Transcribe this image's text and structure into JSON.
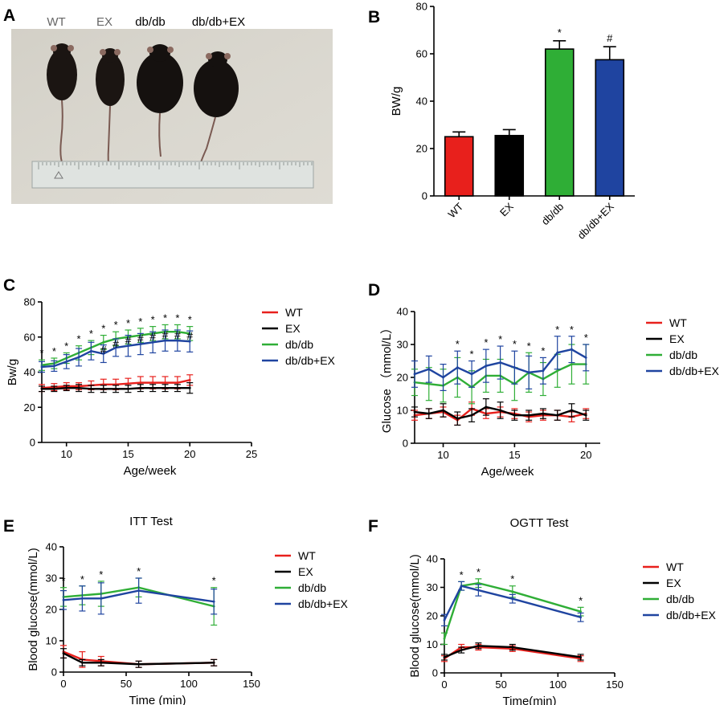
{
  "photo": {
    "panel": "A",
    "labels": [
      "WT",
      "EX",
      "db/db",
      "db/db+EX"
    ],
    "label_colors": [
      "#666666",
      "#666666",
      "#000000",
      "#000000"
    ]
  },
  "colors": {
    "WT": "#e8201c",
    "EX": "#000000",
    "dbdb": "#2fae36",
    "dbdbEX": "#1f44a0"
  },
  "chart_data": [
    {
      "panel": "B",
      "type": "bar",
      "categories": [
        "WT",
        "EX",
        "db/db",
        "db/db+EX"
      ],
      "values": [
        25,
        25.5,
        62,
        57.5
      ],
      "errors": [
        2,
        2.5,
        3.5,
        5.5
      ],
      "colors": [
        "#e8201c",
        "#000000",
        "#2fae36",
        "#1f44a0"
      ],
      "annotations": [
        "",
        "",
        "*",
        "#"
      ],
      "ylabel": "BW/g",
      "ylim": [
        0,
        80
      ],
      "yticks": [
        0,
        20,
        40,
        60,
        80
      ]
    },
    {
      "panel": "C",
      "type": "line",
      "xlabel": "Age/week",
      "ylabel": "Bw/g",
      "xlim": [
        8,
        25
      ],
      "ylim": [
        0,
        80
      ],
      "xticks": [
        10,
        15,
        20,
        25
      ],
      "yticks": [
        0,
        20,
        40,
        60,
        80
      ],
      "x": [
        8,
        9,
        10,
        11,
        12,
        13,
        14,
        15,
        16,
        17,
        18,
        19,
        20
      ],
      "series": [
        {
          "name": "WT",
          "color": "#e8201c",
          "values": [
            31,
            31.5,
            32,
            32,
            32.5,
            33,
            33,
            33.5,
            34,
            34,
            34,
            34,
            35.5
          ],
          "errors": [
            2,
            2,
            2,
            2,
            2.5,
            3,
            3,
            3,
            3.5,
            3.5,
            3.5,
            3.5,
            3
          ]
        },
        {
          "name": "EX",
          "color": "#000000",
          "values": [
            30.5,
            30.5,
            31,
            31,
            30.5,
            30.5,
            30.5,
            30.5,
            31,
            31,
            31,
            31,
            31
          ],
          "errors": [
            1.5,
            1.5,
            1.5,
            2,
            2,
            2,
            2,
            2,
            2,
            2,
            2,
            2,
            3
          ]
        },
        {
          "name": "db/db",
          "color": "#2fae36",
          "values": [
            44,
            45,
            48,
            51,
            54,
            57,
            59,
            60,
            61,
            62,
            63,
            63,
            62
          ],
          "errors": [
            3,
            3,
            3,
            4,
            4,
            4,
            4,
            4,
            4,
            4,
            4,
            4,
            4
          ]
        },
        {
          "name": "db/db+EX",
          "color": "#1f44a0",
          "values": [
            43,
            43.5,
            46,
            48.5,
            52,
            50.5,
            54,
            55,
            56,
            57,
            58,
            58,
            57.5
          ],
          "errors": [
            3,
            3,
            4,
            5,
            5,
            5,
            5,
            6,
            6,
            6,
            6,
            6,
            6
          ]
        }
      ],
      "sig_star": [
        "*",
        "*",
        "*",
        "*",
        "*",
        "*",
        "*",
        "*",
        "*",
        "*",
        "*",
        "*",
        "*"
      ],
      "sig_hash": [
        "",
        "",
        "",
        "",
        "",
        "#",
        "#",
        "#",
        "#",
        "#",
        "#",
        "#",
        "#"
      ]
    },
    {
      "panel": "D",
      "type": "line",
      "xlabel": "Age/week",
      "ylabel": "Glucose （mmol/L）",
      "xlim": [
        8,
        21
      ],
      "ylim": [
        0,
        40
      ],
      "xticks": [
        10,
        15,
        20
      ],
      "yticks": [
        0,
        10,
        20,
        30,
        40
      ],
      "x": [
        8,
        9,
        10,
        11,
        12,
        13,
        14,
        15,
        16,
        17,
        18,
        19,
        20
      ],
      "series": [
        {
          "name": "WT",
          "color": "#e8201c",
          "values": [
            8.5,
            9,
            9.5,
            7,
            10.5,
            9,
            9.5,
            9,
            8,
            8.5,
            8.5,
            8,
            9
          ],
          "errors": [
            1.5,
            1.5,
            1.5,
            1.5,
            2,
            1.5,
            1.5,
            1.5,
            1.5,
            1.5,
            1.5,
            1.5,
            1.5
          ]
        },
        {
          "name": "EX",
          "color": "#000000",
          "values": [
            9.5,
            9,
            10,
            7.5,
            8.5,
            11,
            10,
            8.5,
            8.5,
            9,
            8.5,
            10,
            8.5
          ],
          "errors": [
            1.5,
            1.5,
            2,
            2,
            2,
            2.5,
            2.5,
            1.5,
            1.5,
            1.5,
            1.5,
            2,
            1.5
          ]
        },
        {
          "name": "db/db",
          "color": "#2fae36",
          "values": [
            18.5,
            18,
            17.5,
            20,
            17,
            20.5,
            20.5,
            18,
            21.5,
            19.5,
            22,
            24,
            24
          ],
          "errors": [
            4,
            5,
            5,
            6,
            5,
            5,
            5,
            5,
            6,
            5,
            5,
            6,
            6
          ]
        },
        {
          "name": "db/db+EX",
          "color": "#1f44a0",
          "values": [
            21,
            22.5,
            20,
            23,
            21,
            23.5,
            24.5,
            23,
            21.5,
            22,
            27.5,
            28.5,
            26
          ],
          "errors": [
            4,
            4,
            4,
            5,
            4,
            5,
            5,
            5,
            5,
            4,
            5,
            4,
            4
          ]
        }
      ],
      "sig_star": [
        "",
        "",
        "",
        "*",
        "*",
        "*",
        "*",
        "*",
        "*",
        "*",
        "*",
        "*",
        "*"
      ]
    },
    {
      "panel": "E",
      "type": "line",
      "title": "ITT Test",
      "xlabel": "Time (min)",
      "ylabel": "Blood glucose(mmol/L)",
      "xlim": [
        0,
        150
      ],
      "ylim": [
        0,
        40
      ],
      "xticks": [
        0,
        50,
        100,
        150
      ],
      "yticks": [
        0,
        10,
        20,
        30,
        40
      ],
      "x": [
        0,
        15,
        30,
        60,
        120
      ],
      "series": [
        {
          "name": "WT",
          "color": "#e8201c",
          "values": [
            6.5,
            4,
            3.5,
            2.5,
            3
          ],
          "errors": [
            2,
            2.5,
            1.5,
            1,
            1
          ]
        },
        {
          "name": "EX",
          "color": "#000000",
          "values": [
            6,
            3,
            3,
            2.5,
            3
          ],
          "errors": [
            1.5,
            1,
            1,
            1,
            1
          ]
        },
        {
          "name": "db/db",
          "color": "#2fae36",
          "values": [
            24,
            24.5,
            25,
            27,
            21
          ],
          "errors": [
            3,
            3,
            4,
            3,
            6
          ]
        },
        {
          "name": "db/db+EX",
          "color": "#1f44a0",
          "values": [
            23,
            23.5,
            23.5,
            26,
            22.5
          ],
          "errors": [
            3,
            4,
            5,
            4,
            4
          ]
        }
      ],
      "sig_star": [
        "*",
        "*",
        "*",
        "*",
        "*"
      ]
    },
    {
      "panel": "F",
      "type": "line",
      "title": "OGTT Test",
      "xlabel": "Time(min)",
      "ylabel": "Blood glucose(mmol/L)",
      "xlim": [
        0,
        150
      ],
      "ylim": [
        0,
        40
      ],
      "xticks": [
        0,
        50,
        100,
        150
      ],
      "yticks": [
        0,
        10,
        20,
        30,
        40
      ],
      "x": [
        0,
        15,
        30,
        60,
        120
      ],
      "series": [
        {
          "name": "WT",
          "color": "#e8201c",
          "values": [
            5,
            9,
            9,
            8.5,
            5
          ],
          "errors": [
            1,
            1,
            1,
            1,
            1
          ]
        },
        {
          "name": "EX",
          "color": "#000000",
          "values": [
            5.5,
            8,
            9.5,
            9,
            5.5
          ],
          "errors": [
            1,
            1,
            1,
            1,
            1
          ]
        },
        {
          "name": "db/db",
          "color": "#2fae36",
          "values": [
            12,
            30.5,
            31.5,
            28.5,
            21.5
          ],
          "errors": [
            2,
            1.5,
            1.5,
            2,
            1.5
          ]
        },
        {
          "name": "db/db+EX",
          "color": "#1f44a0",
          "values": [
            18.5,
            30.5,
            29,
            26,
            19.5
          ],
          "errors": [
            2,
            1.5,
            2,
            1.5,
            1.5
          ]
        }
      ],
      "sig_star": [
        "",
        "*",
        "*",
        "*",
        "*"
      ]
    }
  ]
}
